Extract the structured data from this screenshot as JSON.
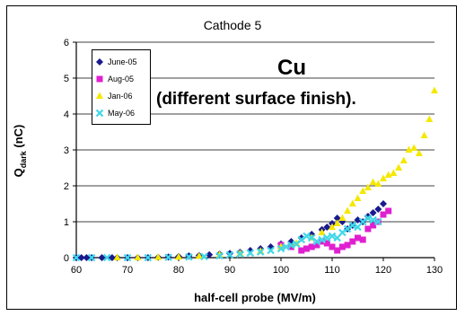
{
  "chart_data": {
    "type": "scatter",
    "title": "Cathode 5",
    "ylabel_main": "Q",
    "ylabel_sub": "dark",
    "ylabel_unit": " (nC)",
    "xlabel": "half-cell probe (MV/m)",
    "xlim": [
      60,
      130
    ],
    "ylim": [
      0,
      6
    ],
    "xticks": [
      60,
      70,
      80,
      90,
      100,
      110,
      120,
      130
    ],
    "yticks": [
      0,
      1,
      2,
      3,
      4,
      5,
      6
    ],
    "grid": "horizontal",
    "legend_position": "top-left",
    "annotations": [
      "Cu",
      "(different surface finish)."
    ],
    "series": [
      {
        "name": "June-05",
        "color": "#1a1a8c",
        "marker": "diamond",
        "x": [
          60,
          61,
          62,
          63,
          65,
          67,
          68,
          70,
          72,
          74,
          76,
          78,
          80,
          82,
          84,
          86,
          88,
          90,
          92,
          94,
          96,
          98,
          100,
          102,
          104,
          106,
          108,
          109,
          110,
          111,
          112,
          113,
          114,
          115,
          116,
          117,
          118,
          119,
          120
        ],
        "y": [
          0,
          0,
          0,
          0,
          0,
          0,
          0,
          0,
          0,
          0,
          0.01,
          0.02,
          0.03,
          0.05,
          0.06,
          0.08,
          0.1,
          0.12,
          0.15,
          0.2,
          0.25,
          0.3,
          0.38,
          0.45,
          0.55,
          0.65,
          0.78,
          0.85,
          0.95,
          1.1,
          1.0,
          0.8,
          0.9,
          1.05,
          1.0,
          1.15,
          1.25,
          1.35,
          1.5
        ]
      },
      {
        "name": "Aug-05",
        "color": "#e020d0",
        "marker": "square",
        "x": [
          100,
          102,
          104,
          105,
          106,
          107,
          108,
          109,
          110,
          111,
          112,
          113,
          114,
          115,
          116,
          117,
          118,
          119,
          120,
          121
        ],
        "y": [
          0.35,
          0.3,
          0.2,
          0.25,
          0.3,
          0.35,
          0.45,
          0.4,
          0.3,
          0.2,
          0.3,
          0.35,
          0.45,
          0.55,
          0.5,
          0.8,
          0.9,
          1.0,
          1.2,
          1.3
        ]
      },
      {
        "name": "Jan-06",
        "color": "#f5e800",
        "marker": "triangle",
        "x": [
          68,
          72,
          76,
          80,
          84,
          88,
          92,
          96,
          100,
          103,
          106,
          108,
          110,
          111,
          112,
          113,
          114,
          115,
          116,
          117,
          118,
          119,
          120,
          121,
          122,
          123,
          124,
          125,
          126,
          127,
          128,
          129,
          130
        ],
        "y": [
          0,
          0,
          0.01,
          0.02,
          0.04,
          0.08,
          0.12,
          0.18,
          0.3,
          0.4,
          0.55,
          0.7,
          0.85,
          0.95,
          1.1,
          1.3,
          1.5,
          1.65,
          1.85,
          1.95,
          2.1,
          2.05,
          2.2,
          2.3,
          2.35,
          2.5,
          2.7,
          3.0,
          3.05,
          2.9,
          3.4,
          3.85,
          4.65
        ]
      },
      {
        "name": "May-06",
        "color": "#40d8e8",
        "marker": "x",
        "x": [
          60,
          63,
          66,
          70,
          74,
          78,
          82,
          85,
          88,
          90,
          92,
          94,
          96,
          98,
          100,
          101,
          102,
          103,
          104,
          105,
          106,
          107,
          108,
          109,
          110,
          111,
          112,
          113,
          114,
          115,
          116,
          117,
          118,
          119
        ],
        "y": [
          0,
          0,
          0,
          0,
          0,
          0.01,
          0.02,
          0.03,
          0.05,
          0.08,
          0.1,
          0.13,
          0.16,
          0.2,
          0.25,
          0.3,
          0.35,
          0.38,
          0.5,
          0.6,
          0.55,
          0.45,
          0.5,
          0.55,
          0.6,
          0.55,
          0.7,
          0.8,
          0.9,
          0.85,
          1.0,
          1.1,
          1.05,
          1.0
        ]
      }
    ]
  }
}
